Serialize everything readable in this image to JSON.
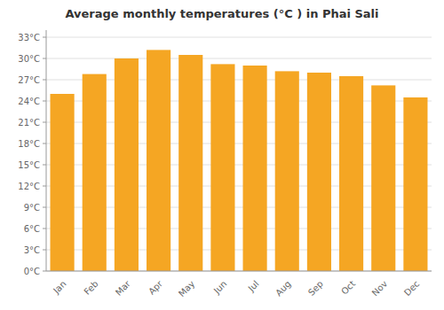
{
  "chart_data": {
    "type": "bar",
    "title": "Average monthly temperatures (°C ) in Phai Sali",
    "categories": [
      "Jan",
      "Feb",
      "Mar",
      "Apr",
      "May",
      "Jun",
      "Jul",
      "Aug",
      "Sep",
      "Oct",
      "Nov",
      "Dec"
    ],
    "values": [
      25.0,
      27.8,
      30.0,
      31.2,
      30.5,
      29.2,
      29.0,
      28.2,
      28.0,
      27.5,
      26.2,
      24.5
    ],
    "color": "#F5A623",
    "ylim": [
      0,
      34
    ],
    "yticks": [
      {
        "value": 0,
        "label": "0°C"
      },
      {
        "value": 3,
        "label": "3°C"
      },
      {
        "value": 6,
        "label": "6°C"
      },
      {
        "value": 9,
        "label": "9°C"
      },
      {
        "value": 12,
        "label": "12°C"
      },
      {
        "value": 15,
        "label": "15°C"
      },
      {
        "value": 18,
        "label": "18°C"
      },
      {
        "value": 21,
        "label": "21°C"
      },
      {
        "value": 24,
        "label": "24°C"
      },
      {
        "value": 27,
        "label": "27°C"
      },
      {
        "value": 30,
        "label": "30°C"
      },
      {
        "value": 33,
        "label": "33°C"
      }
    ],
    "grid": true
  }
}
